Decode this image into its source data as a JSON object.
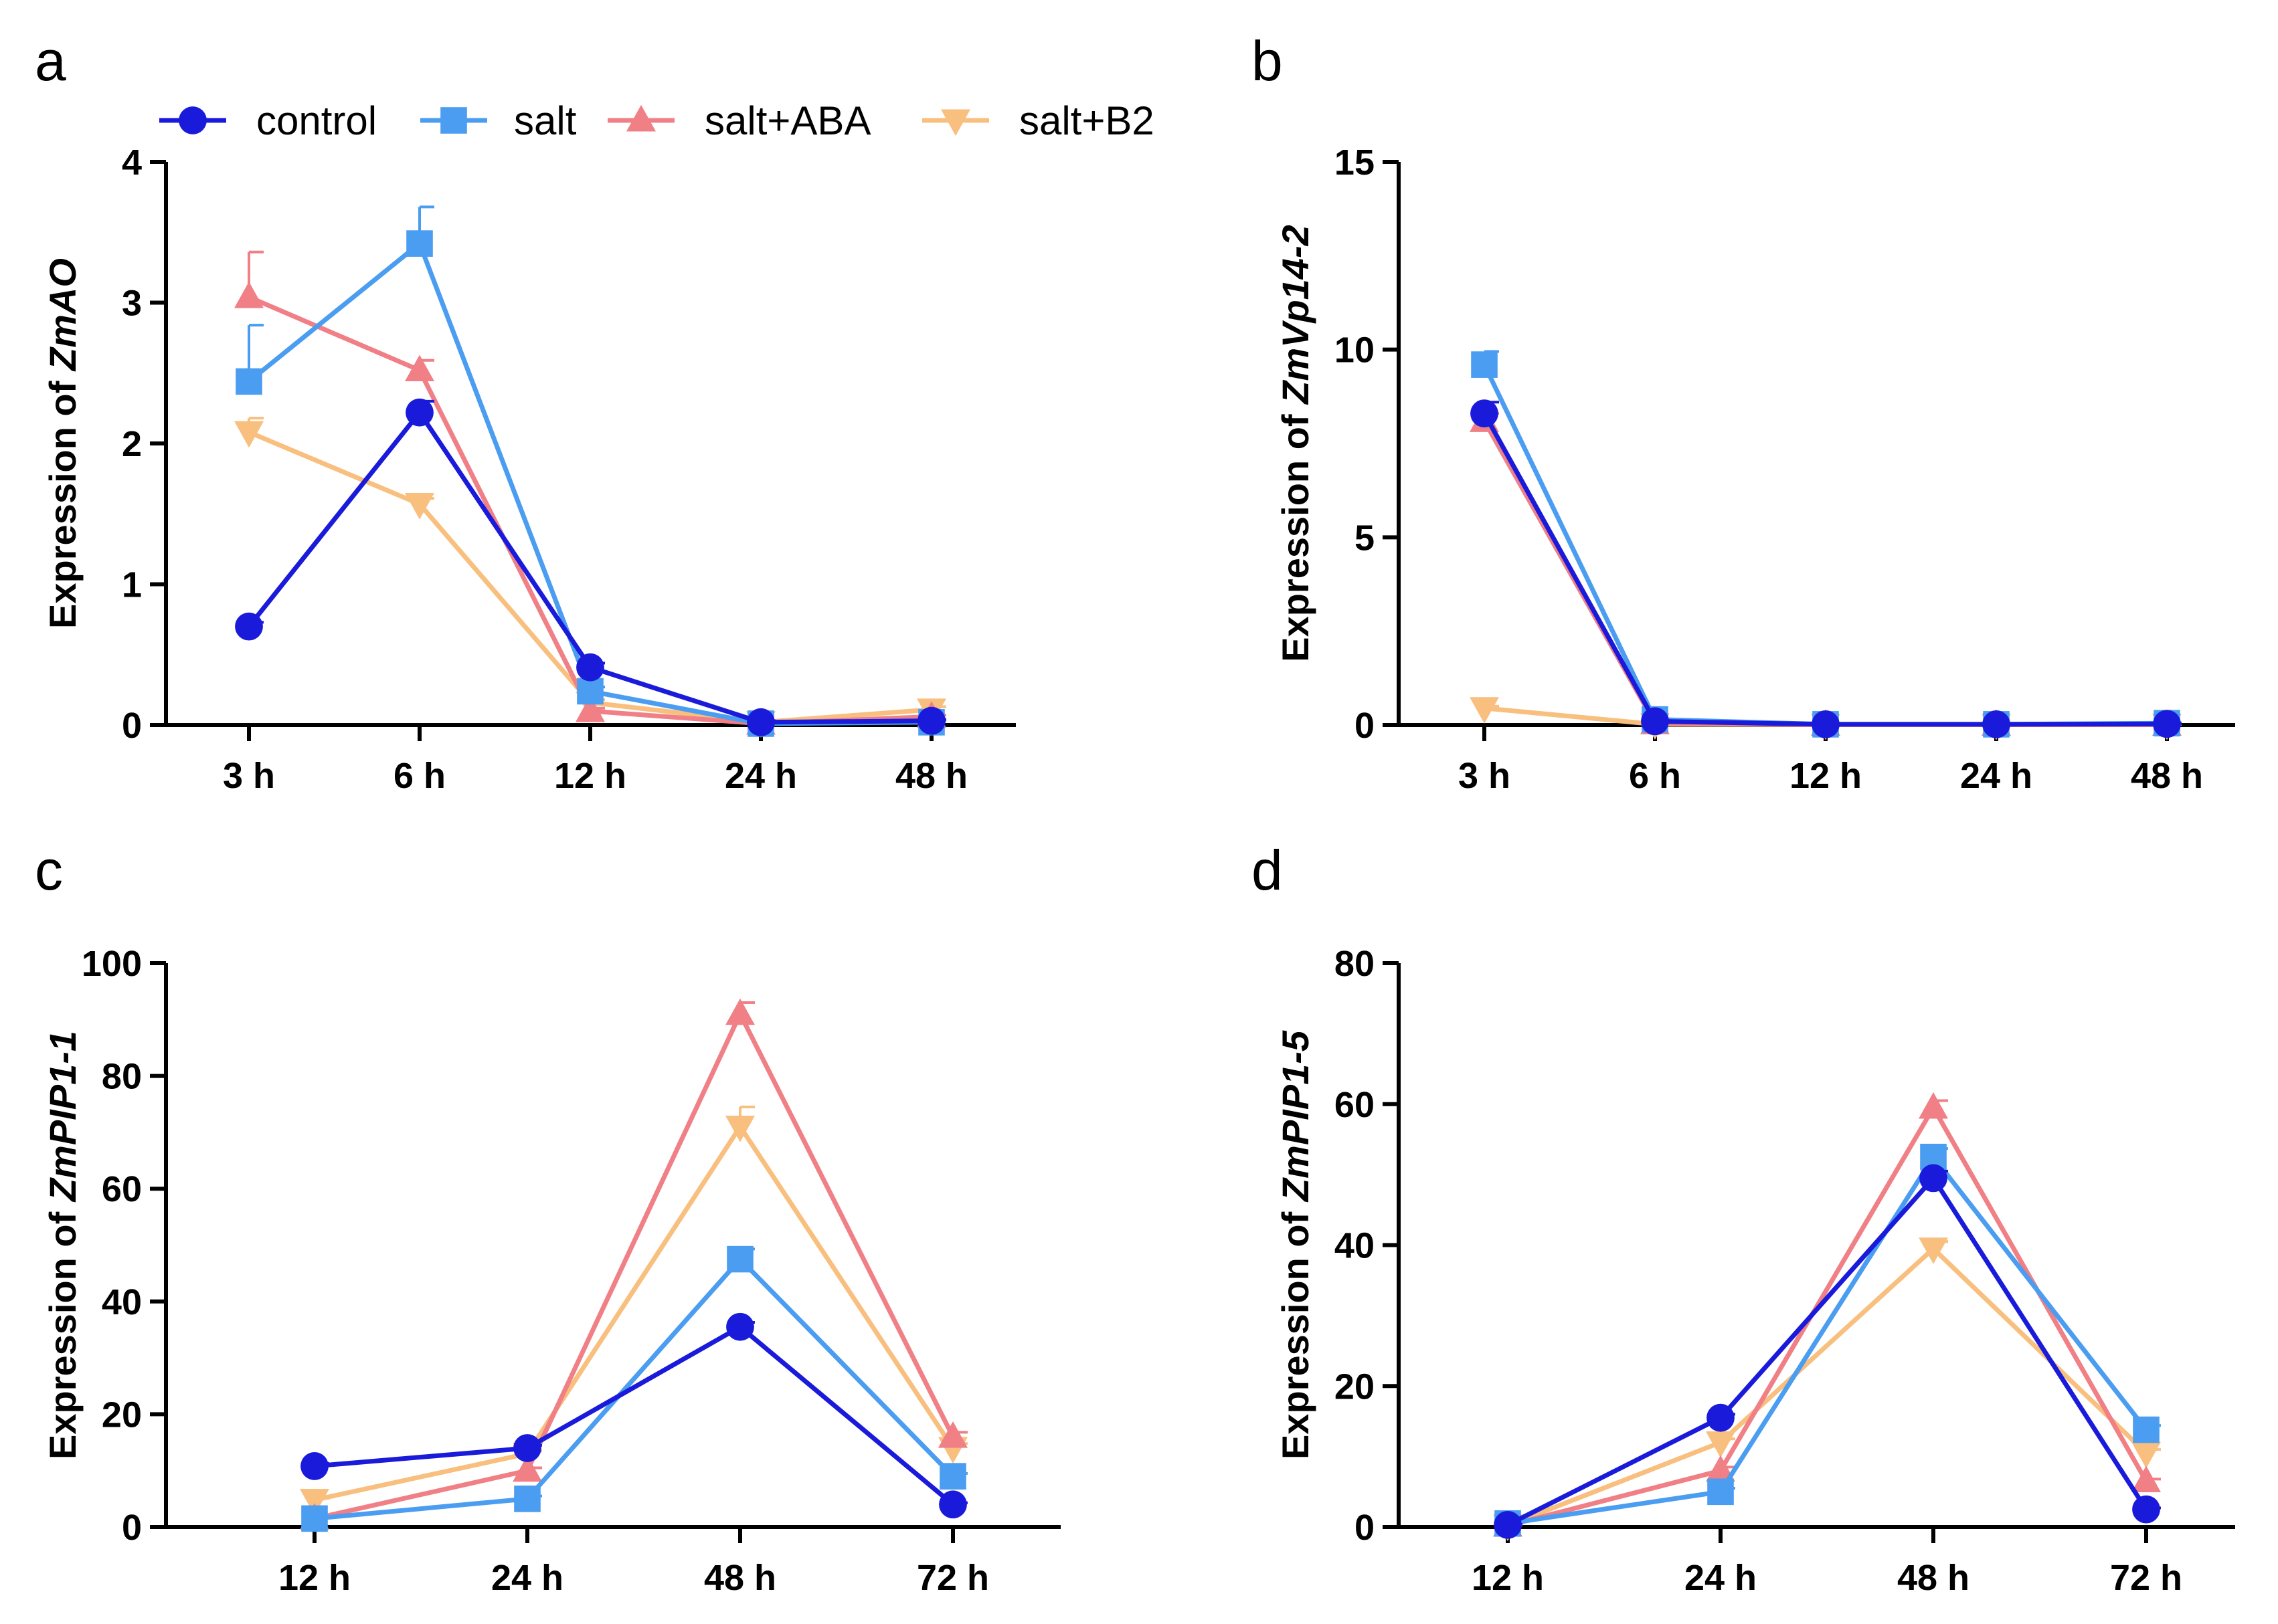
{
  "colors": {
    "control": "#1a1adb",
    "salt": "#4a9df0",
    "salt+ABA": "#f07f86",
    "salt+B2": "#f8bf7e"
  },
  "legend": [
    {
      "name": "control",
      "marker": "circle"
    },
    {
      "name": "salt",
      "marker": "square"
    },
    {
      "name": "salt+ABA",
      "marker": "triangle-up"
    },
    {
      "name": "salt+B2",
      "marker": "triangle-down"
    }
  ],
  "chart_data": [
    {
      "panel": "a",
      "type": "line",
      "ylabel_prefix": "Expression of ",
      "ylabel_gene": "ZmAO",
      "categories": [
        "3 h",
        "6 h",
        "12 h",
        "24 h",
        "48 h"
      ],
      "ylim": [
        0,
        4
      ],
      "yticks": [
        0,
        1,
        2,
        3,
        4
      ],
      "series": [
        {
          "name": "control",
          "values": [
            0.7,
            2.22,
            0.41,
            0.02,
            0.03
          ],
          "err": [
            0.03,
            0.08,
            0.03,
            0.01,
            0.01
          ]
        },
        {
          "name": "salt",
          "values": [
            2.44,
            3.42,
            0.24,
            0.01,
            0.02
          ],
          "err": [
            0.4,
            0.26,
            0.03,
            0.01,
            0.01
          ]
        },
        {
          "name": "salt+ABA",
          "values": [
            3.04,
            2.52,
            0.1,
            0.01,
            0.06
          ],
          "err": [
            0.32,
            0.07,
            0.02,
            0.01,
            0.01
          ]
        },
        {
          "name": "salt+B2",
          "values": [
            2.08,
            1.57,
            0.16,
            0.02,
            0.11
          ],
          "err": [
            0.1,
            0.04,
            0.02,
            0.01,
            0.02
          ]
        }
      ]
    },
    {
      "panel": "b",
      "type": "line",
      "ylabel_prefix": "Expression of ",
      "ylabel_gene": "ZmVp14-2",
      "categories": [
        "3 h",
        "6 h",
        "12 h",
        "24 h",
        "48 h"
      ],
      "ylim": [
        0,
        15
      ],
      "yticks": [
        0,
        5,
        10,
        15
      ],
      "series": [
        {
          "name": "control",
          "values": [
            8.3,
            0.1,
            0.02,
            0.02,
            0.03
          ],
          "err": [
            0.3,
            0.02,
            0.01,
            0.01,
            0.01
          ]
        },
        {
          "name": "salt",
          "values": [
            9.6,
            0.15,
            0.02,
            0.02,
            0.05
          ],
          "err": [
            0.35,
            0.02,
            0.01,
            0.01,
            0.01
          ]
        },
        {
          "name": "salt+ABA",
          "values": [
            8.1,
            0.05,
            0.01,
            0.01,
            0.01
          ],
          "err": [
            0.2,
            0.01,
            0.01,
            0.01,
            0.01
          ]
        },
        {
          "name": "salt+B2",
          "values": [
            0.45,
            0.02,
            0.01,
            0.01,
            0.01
          ],
          "err": [
            0.05,
            0.01,
            0.01,
            0.01,
            0.01
          ]
        }
      ]
    },
    {
      "panel": "c",
      "type": "line",
      "ylabel_prefix": "Expression of ",
      "ylabel_gene": "ZmPIP1-1",
      "categories": [
        "12 h",
        "24 h",
        "48 h",
        "72 h"
      ],
      "ylim": [
        0,
        100
      ],
      "yticks": [
        0,
        20,
        40,
        60,
        80,
        100
      ],
      "series": [
        {
          "name": "control",
          "values": [
            10.8,
            14,
            35.5,
            4
          ],
          "err": [
            0.5,
            0.5,
            0.8,
            0.3
          ]
        },
        {
          "name": "salt",
          "values": [
            1.5,
            5,
            47.5,
            9
          ],
          "err": [
            0.3,
            0.5,
            1.8,
            0.5
          ]
        },
        {
          "name": "salt+ABA",
          "values": [
            1.5,
            10,
            91,
            16
          ],
          "err": [
            0.2,
            0.5,
            2,
            0.8
          ]
        },
        {
          "name": "salt+B2",
          "values": [
            4.8,
            13,
            71,
            14
          ],
          "err": [
            0.3,
            0.5,
            3.5,
            0.8
          ]
        }
      ]
    },
    {
      "panel": "d",
      "type": "line",
      "ylabel_prefix": "Expression of ",
      "ylabel_gene": "ZmPIP1-5",
      "categories": [
        "12 h",
        "24 h",
        "48 h",
        "72 h"
      ],
      "ylim": [
        0,
        80
      ],
      "yticks": [
        0,
        20,
        40,
        60,
        80
      ],
      "series": [
        {
          "name": "control",
          "values": [
            0.3,
            15.5,
            49.5,
            2.5
          ],
          "err": [
            0.1,
            0.5,
            1,
            0.2
          ]
        },
        {
          "name": "salt",
          "values": [
            0.5,
            5,
            52.5,
            13.8
          ],
          "err": [
            0.1,
            0.5,
            1.2,
            0.6
          ]
        },
        {
          "name": "salt+ABA",
          "values": [
            0.2,
            8,
            59.5,
            6.5
          ],
          "err": [
            0.1,
            0.5,
            1,
            0.3
          ]
        },
        {
          "name": "salt+B2",
          "values": [
            0.2,
            12,
            39.5,
            10.5
          ],
          "err": [
            0.1,
            0.5,
            1,
            0.5
          ]
        }
      ]
    }
  ]
}
